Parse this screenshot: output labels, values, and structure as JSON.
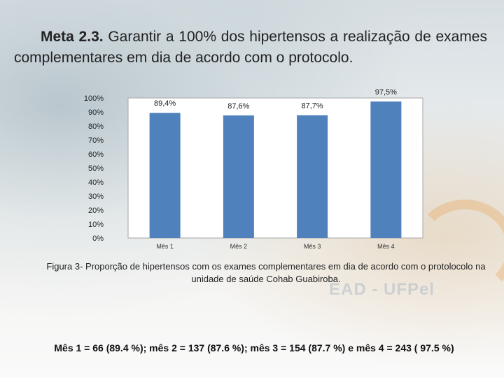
{
  "heading": {
    "title_bold": "Meta 2.3.",
    "title_text": "Garantir a 100% dos hipertensos a realização de exames complementares em dia de acordo com o protocolo."
  },
  "watermark": {
    "text": "EAD - UFPel"
  },
  "caption": "Figura 3- Proporção de hipertensos com os exames complementares em dia de acordo com o protolocolo   na unidade de saúde Cohab Guabiroba.",
  "summary": "Mês 1 = 66 (89.4 %); mês 2 = 137 (87.6 %); mês 3 = 154 (87.7 %) e mês 4 = 243 ( 97.5 %)",
  "colors": {
    "bar": "#4f81bd",
    "plot_bg": "#ffffff",
    "axis": "#a6a6a6"
  },
  "chart_data": {
    "type": "bar",
    "title": "",
    "xlabel": "",
    "ylabel": "",
    "categories": [
      "Mês 1",
      "Mês 2",
      "Mês 3",
      "Mês 4"
    ],
    "values": [
      89.4,
      87.6,
      87.7,
      97.5
    ],
    "data_labels": [
      "89,4%",
      "87,6%",
      "87,7%",
      "97,5%"
    ],
    "ylim": [
      0,
      100
    ],
    "yticks": [
      0,
      10,
      20,
      30,
      40,
      50,
      60,
      70,
      80,
      90,
      100
    ],
    "ytick_labels": [
      "0%",
      "10%",
      "20%",
      "30%",
      "40%",
      "50%",
      "60%",
      "70%",
      "80%",
      "90%",
      "100%"
    ],
    "grid": false,
    "legend": "none"
  }
}
